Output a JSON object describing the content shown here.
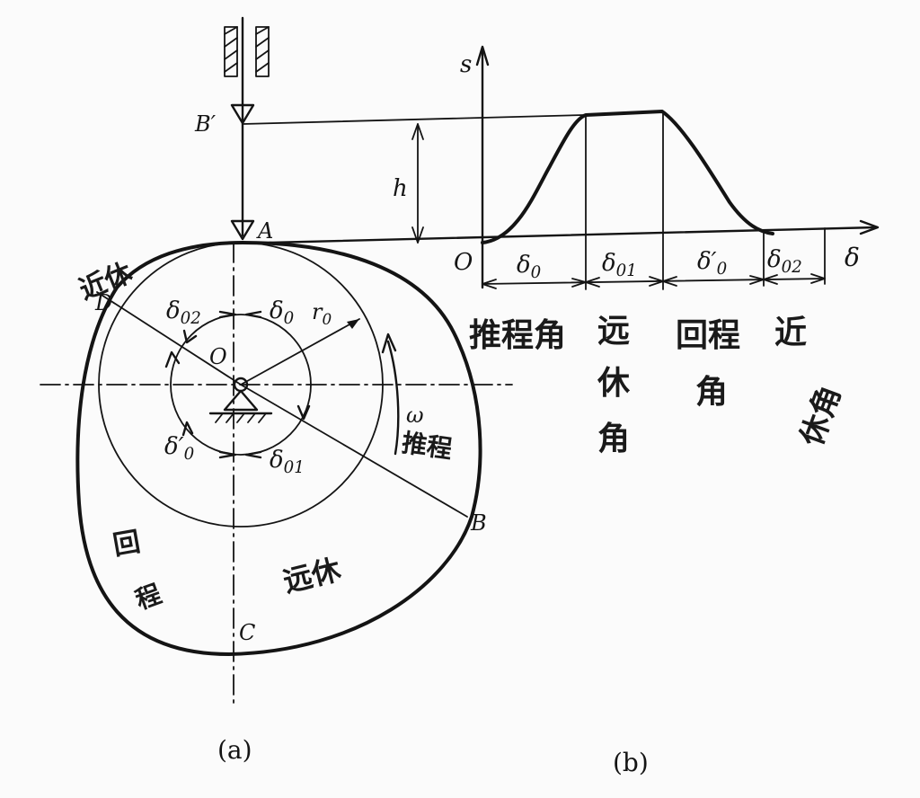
{
  "figure_a": {
    "caption": "(a)",
    "points": {
      "b_prime": "B′",
      "a": "A",
      "o": "O",
      "b": "B",
      "c": "C",
      "d": "D"
    },
    "angles": {
      "d02": "δ",
      "d02_sub": "02",
      "d0": "δ",
      "d0_sub": "0",
      "r0": "r",
      "r0_sub": "0",
      "d0p": "δ′",
      "d0p_sub": "0",
      "d01": "δ",
      "d01_sub": "01",
      "omega": "ω"
    },
    "handwriting": {
      "top_left": "近休",
      "right_arc": "推程",
      "bottom_left_1": "回",
      "bottom_left_2": "程",
      "bottom_center": "远休"
    }
  },
  "figure_b": {
    "caption": "(b)",
    "axes": {
      "y": "s",
      "x": "δ",
      "origin": "O",
      "h": "h"
    },
    "segments": [
      {
        "sym": "δ",
        "sub": "0"
      },
      {
        "sym": "δ",
        "sub": "01"
      },
      {
        "sym": "δ′",
        "sub": "0"
      },
      {
        "sym": "δ",
        "sub": "02"
      }
    ],
    "handwriting": {
      "col1": "推程角",
      "col2a": "远",
      "col2b": "休",
      "col2c": "角",
      "col3a": "回程",
      "col3b": "角",
      "col4a": "近",
      "col4b": "休角"
    }
  }
}
